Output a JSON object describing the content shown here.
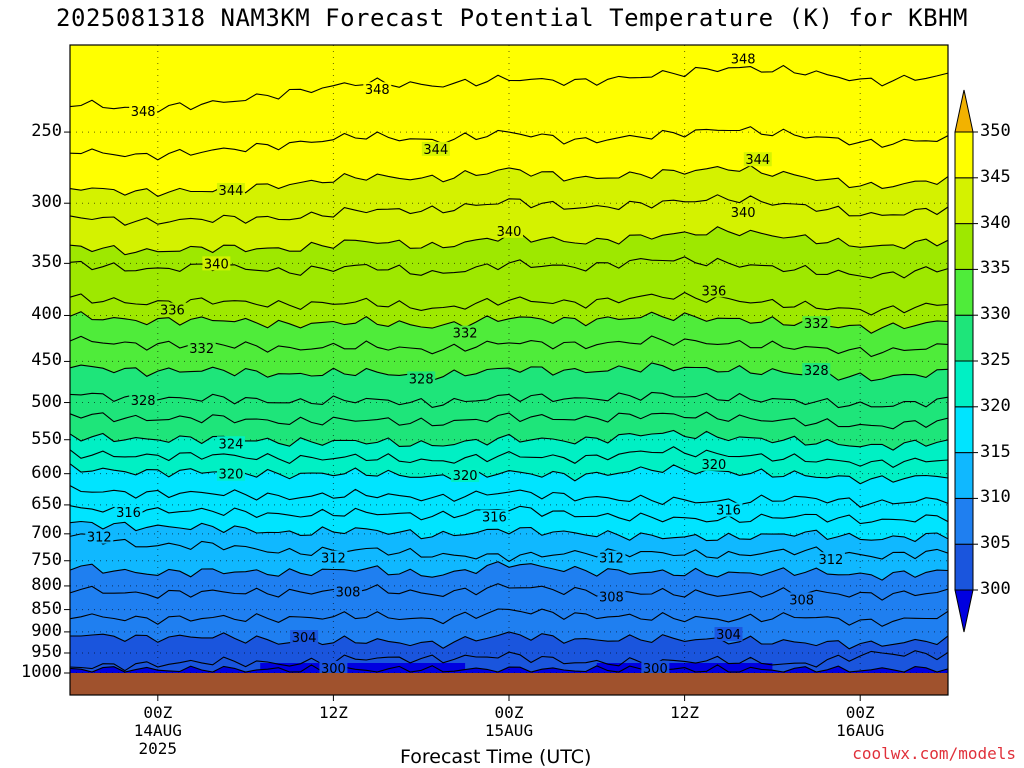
{
  "title": "2025081318 NAM3KM Forecast Potential Temperature (K) for KBHM",
  "credit": "coolwx.com/models",
  "chart_data": {
    "type": "heatmap",
    "title": "2025081318 NAM3KM Forecast Potential Temperature (K) for KBHM",
    "xlabel": "Forecast Time (UTC)",
    "ylabel": "",
    "x_ticks": [
      {
        "l1": "00Z",
        "l2": "14AUG",
        "l3": "2025",
        "hour": 6
      },
      {
        "l1": "12Z",
        "l2": "",
        "l3": "",
        "hour": 18
      },
      {
        "l1": "00Z",
        "l2": "15AUG",
        "l3": "",
        "hour": 30
      },
      {
        "l1": "12Z",
        "l2": "",
        "l3": "",
        "hour": 42
      },
      {
        "l1": "00Z",
        "l2": "16AUG",
        "l3": "",
        "hour": 54
      }
    ],
    "xlim_hours": [
      0,
      60
    ],
    "y_scale": "log-pressure",
    "y_ticks": [
      250,
      300,
      350,
      400,
      450,
      500,
      550,
      600,
      650,
      700,
      750,
      800,
      850,
      900,
      950,
      1000
    ],
    "ylim_hPa": [
      200,
      1000
    ],
    "colorbar": {
      "levels": [
        300,
        305,
        310,
        315,
        320,
        325,
        330,
        335,
        340,
        345,
        350
      ],
      "colors": [
        "#0000e0",
        "#1a55dd",
        "#1f7ff0",
        "#10b8ff",
        "#00e4ff",
        "#00f0c4",
        "#1ee57a",
        "#4fec3a",
        "#9ee800",
        "#d4f200",
        "#ffff00",
        "#f2b200"
      ],
      "extend": "both"
    },
    "isentropes": [
      {
        "theta": 300,
        "p": [
          992,
          992,
          992,
          992,
          992,
          992,
          992,
          992,
          992,
          992,
          992,
          992,
          992
        ],
        "labels": [
          {
            "x": 18,
            "p": 987
          },
          {
            "x": 40,
            "p": 987
          }
        ]
      },
      {
        "theta": 302,
        "p": [
          985,
          980,
          970,
          978,
          962,
          966,
          955,
          975,
          972,
          968,
          980,
          950,
          955
        ]
      },
      {
        "theta": 304,
        "p": [
          905,
          915,
          910,
          925,
          920,
          930,
          905,
          920,
          915,
          920,
          925,
          930,
          918
        ],
        "labels": [
          {
            "x": 16,
            "p": 912
          },
          {
            "x": 45,
            "p": 905
          }
        ]
      },
      {
        "theta": 306,
        "p": [
          862,
          872,
          868,
          870,
          862,
          874,
          850,
          864,
          867,
          872,
          864,
          880,
          862
        ]
      },
      {
        "theta": 308,
        "p": [
          805,
          818,
          812,
          815,
          805,
          818,
          800,
          812,
          814,
          818,
          812,
          820,
          812
        ],
        "labels": [
          {
            "x": 19,
            "p": 812
          },
          {
            "x": 37,
            "p": 822
          },
          {
            "x": 50,
            "p": 828
          }
        ]
      },
      {
        "theta": 310,
        "p": [
          760,
          775,
          770,
          775,
          765,
          780,
          755,
          770,
          773,
          776,
          770,
          780,
          770
        ]
      },
      {
        "theta": 312,
        "p": [
          700,
          722,
          720,
          735,
          728,
          740,
          742,
          735,
          735,
          740,
          730,
          742,
          732
        ],
        "labels": [
          {
            "x": 2,
            "p": 705
          },
          {
            "x": 18,
            "p": 744
          },
          {
            "x": 37,
            "p": 744
          },
          {
            "x": 52,
            "p": 747
          }
        ]
      },
      {
        "theta": 314,
        "p": [
          680,
          688,
          688,
          700,
          692,
          704,
          692,
          700,
          705,
          708,
          698,
          710,
          702
        ]
      },
      {
        "theta": 316,
        "p": [
          655,
          660,
          660,
          668,
          662,
          670,
          655,
          668,
          672,
          676,
          668,
          678,
          670
        ],
        "labels": [
          {
            "x": 4,
            "p": 662
          },
          {
            "x": 29,
            "p": 670
          },
          {
            "x": 45,
            "p": 658
          }
        ]
      },
      {
        "theta": 318,
        "p": [
          625,
          632,
          630,
          638,
          632,
          640,
          628,
          638,
          642,
          645,
          638,
          648,
          640
        ]
      },
      {
        "theta": 320,
        "p": [
          592,
          598,
          596,
          602,
          598,
          606,
          598,
          604,
          592,
          598,
          602,
          610,
          602
        ],
        "labels": [
          {
            "x": 11,
            "p": 600
          },
          {
            "x": 27,
            "p": 602
          },
          {
            "x": 44,
            "p": 585
          }
        ]
      },
      {
        "theta": 322,
        "p": [
          570,
          574,
          572,
          578,
          575,
          582,
          572,
          578,
          565,
          572,
          578,
          585,
          578
        ]
      },
      {
        "theta": 324,
        "p": [
          545,
          550,
          548,
          554,
          552,
          558,
          548,
          552,
          540,
          547,
          552,
          560,
          552
        ],
        "labels": [
          {
            "x": 11,
            "p": 555
          }
        ]
      },
      {
        "theta": 326,
        "p": [
          515,
          522,
          520,
          526,
          522,
          528,
          518,
          522,
          515,
          520,
          525,
          532,
          524
        ]
      },
      {
        "theta": 328,
        "p": [
          488,
          496,
          494,
          500,
          496,
          502,
          492,
          496,
          490,
          494,
          498,
          505,
          497
        ],
        "labels": [
          {
            "x": 5,
            "p": 497
          },
          {
            "x": 24,
            "p": 470
          },
          {
            "x": 51,
            "p": 460
          }
        ]
      },
      {
        "theta": 330,
        "p": [
          455,
          462,
          460,
          466,
          462,
          468,
          458,
          462,
          456,
          460,
          464,
          470,
          462
        ]
      },
      {
        "theta": 332,
        "p": [
          425,
          432,
          430,
          436,
          432,
          438,
          428,
          432,
          426,
          430,
          434,
          440,
          432
        ],
        "labels": [
          {
            "x": 9,
            "p": 435
          },
          {
            "x": 27,
            "p": 418
          },
          {
            "x": 51,
            "p": 408
          }
        ]
      },
      {
        "theta": 334,
        "p": [
          400,
          406,
          404,
          410,
          406,
          412,
          402,
          406,
          400,
          404,
          408,
          414,
          406
        ]
      },
      {
        "theta": 336,
        "p": [
          382,
          388,
          385,
          390,
          386,
          394,
          384,
          388,
          380,
          384,
          390,
          396,
          388
        ],
        "labels": [
          {
            "x": 7,
            "p": 394
          },
          {
            "x": 44,
            "p": 375
          }
        ]
      },
      {
        "theta": 338,
        "p": [
          350,
          356,
          352,
          358,
          352,
          360,
          350,
          354,
          346,
          350,
          356,
          362,
          354
        ]
      },
      {
        "theta": 340,
        "p": [
          335,
          340,
          336,
          338,
          330,
          336,
          326,
          332,
          326,
          322,
          328,
          336,
          330
        ],
        "labels": [
          {
            "x": 10,
            "p": 350
          },
          {
            "x": 30,
            "p": 322
          },
          {
            "x": 46,
            "p": 307
          }
        ]
      },
      {
        "theta": 342,
        "p": [
          310,
          315,
          312,
          312,
          305,
          306,
          298,
          304,
          300,
          296,
          302,
          310,
          304
        ]
      },
      {
        "theta": 344,
        "p": [
          288,
          292,
          290,
          286,
          280,
          282,
          275,
          282,
          278,
          274,
          280,
          288,
          282
        ],
        "labels": [
          {
            "x": 11,
            "p": 290
          },
          {
            "x": 25,
            "p": 261
          },
          {
            "x": 47,
            "p": 268
          }
        ]
      },
      {
        "theta": 346,
        "p": [
          262,
          266,
          262,
          258,
          252,
          256,
          250,
          256,
          252,
          248,
          252,
          258,
          254
        ]
      },
      {
        "theta": 348,
        "p": [
          232,
          236,
          232,
          226,
          220,
          222,
          218,
          220,
          216,
          212,
          214,
          220,
          216
        ],
        "labels": [
          {
            "x": 5,
            "p": 237
          },
          {
            "x": 21,
            "p": 224
          },
          {
            "x": 46,
            "p": 207
          }
        ]
      }
    ]
  }
}
